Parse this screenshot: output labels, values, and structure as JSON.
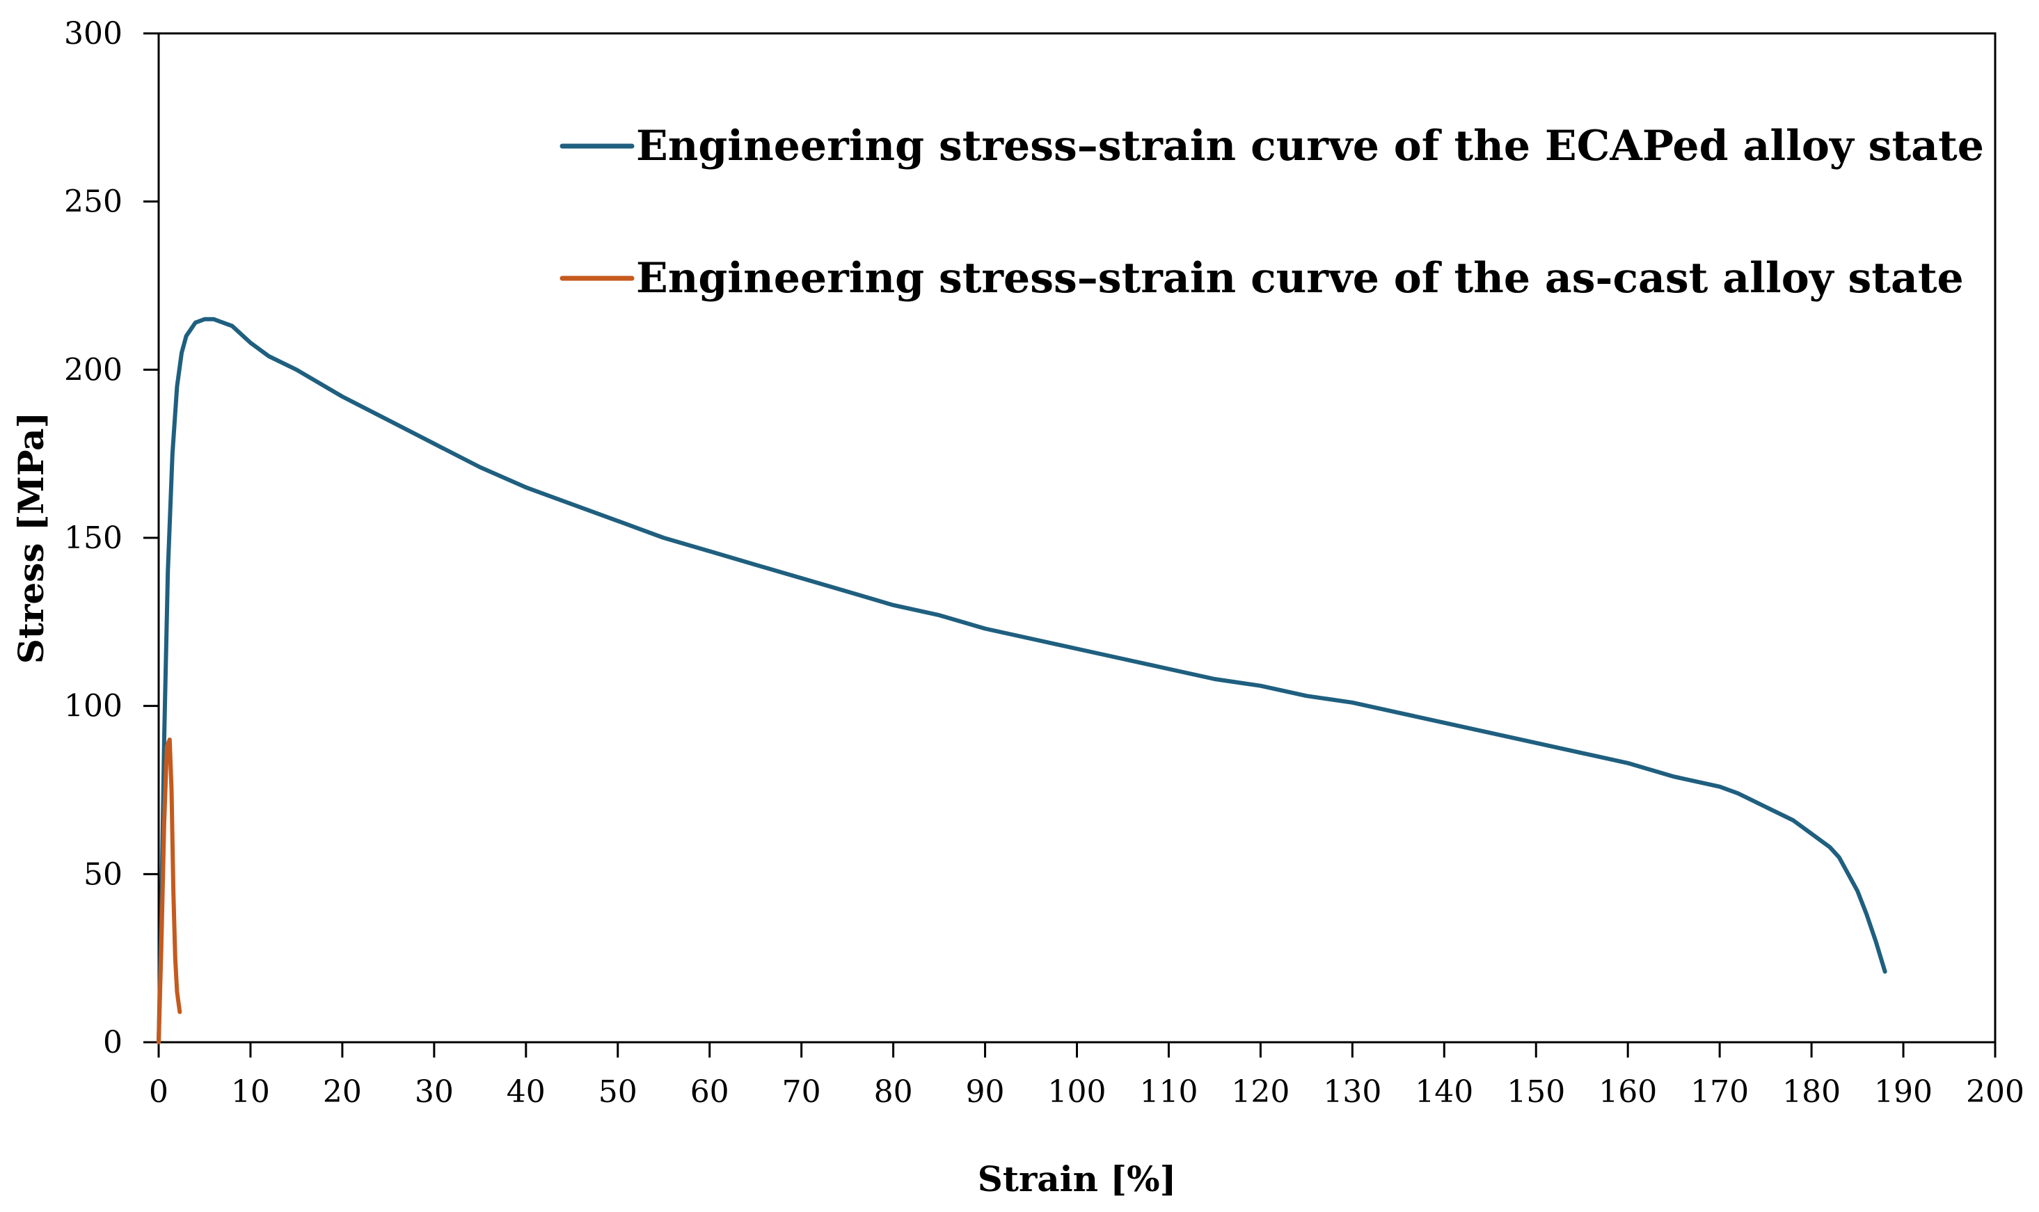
{
  "chart_data": {
    "type": "line",
    "title": "",
    "xlabel": "Strain [%]",
    "ylabel": "Stress [MPa]",
    "xlim": [
      0,
      200
    ],
    "ylim": [
      0,
      300
    ],
    "x_ticks": [
      0,
      10,
      20,
      30,
      40,
      50,
      60,
      70,
      80,
      90,
      100,
      110,
      120,
      130,
      140,
      150,
      160,
      170,
      180,
      190,
      200
    ],
    "y_ticks": [
      0,
      50,
      100,
      150,
      200,
      250,
      300
    ],
    "grid": false,
    "legend_position": "top-right",
    "series": [
      {
        "name": "Engineering stress–strain curve of the ECAPed alloy state",
        "color": "#1f5f7f",
        "x": [
          0,
          0.3,
          0.6,
          1.0,
          1.5,
          2.0,
          2.5,
          3.0,
          4.0,
          5.0,
          6.0,
          7.0,
          8.0,
          10,
          12,
          15,
          20,
          25,
          30,
          35,
          40,
          45,
          50,
          55,
          60,
          65,
          70,
          75,
          80,
          85,
          90,
          95,
          100,
          105,
          110,
          115,
          120,
          125,
          130,
          135,
          140,
          145,
          150,
          155,
          160,
          165,
          170,
          172,
          175,
          178,
          180,
          182,
          183,
          184,
          185,
          186,
          187,
          188
        ],
        "y": [
          0,
          40,
          90,
          140,
          175,
          195,
          205,
          210,
          214,
          215,
          215,
          214,
          213,
          208,
          204,
          200,
          192,
          185,
          178,
          171,
          165,
          160,
          155,
          150,
          146,
          142,
          138,
          134,
          130,
          127,
          123,
          120,
          117,
          114,
          111,
          108,
          106,
          103,
          101,
          98,
          95,
          92,
          89,
          86,
          83,
          79,
          76,
          74,
          70,
          66,
          62,
          58,
          55,
          50,
          45,
          38,
          30,
          21
        ]
      },
      {
        "name": "Engineering stress–strain curve of the as-cast alloy state",
        "color": "#c55a1e",
        "x": [
          0,
          0.3,
          0.6,
          0.9,
          1.2,
          1.4,
          1.6,
          1.8,
          2.0,
          2.3
        ],
        "y": [
          0,
          30,
          65,
          88,
          90,
          75,
          45,
          25,
          15,
          9
        ]
      }
    ]
  }
}
